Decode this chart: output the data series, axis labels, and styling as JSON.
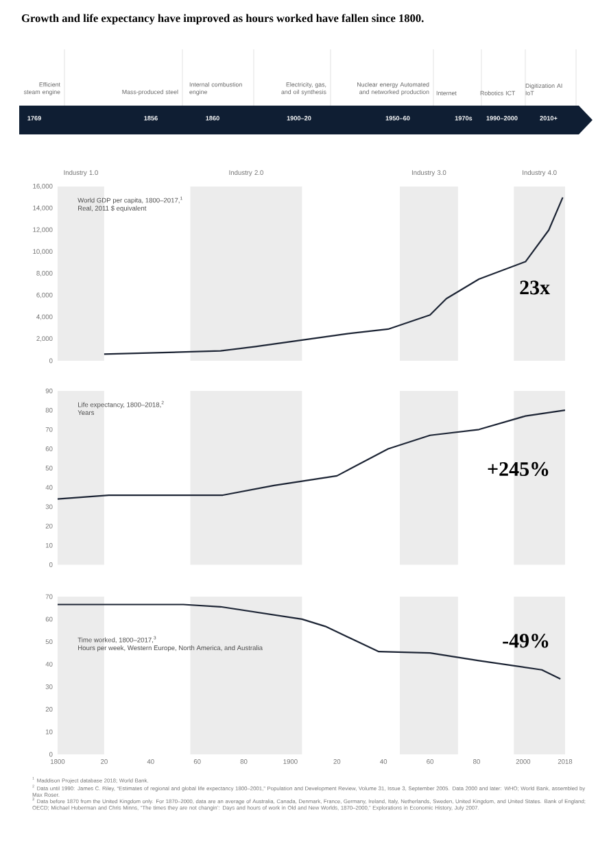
{
  "chart_data": [
    {
      "type": "other",
      "title": "Growth and life expectancy have improved as hours worked have fallen since 1800.",
      "categories": [
        "1769",
        "1856",
        "1860",
        "1900–20",
        "1950–60",
        "1970s",
        "1990–2000",
        "2010+"
      ],
      "annotations": [
        "Efficient steam engine",
        "Mass-produced steel",
        "Internal combustion engine",
        "Electricity, gas, and oil synthesis",
        "Nuclear energy Automated and networked production",
        "Internet",
        "Robotics ICT",
        "Digitization AI IoT"
      ]
    },
    {
      "type": "line",
      "title": "World GDP per capita, 1800–2017,$^{1}$",
      "subtitle": "Real, 2011 $ equivalent",
      "x": [
        1820,
        1870,
        1885,
        1905,
        1925,
        1942,
        1960,
        1967,
        1981,
        2001,
        2011,
        2017
      ],
      "series": [
        {
          "color": "#1c2434",
          "values": [
            600,
            900,
            1300,
            1900,
            2500,
            2900,
            4200,
            5700,
            7500,
            9100,
            12000,
            15000
          ]
        }
      ],
      "xlim": [
        1800,
        2018
      ],
      "ylim": [
        0,
        16000
      ],
      "yticks": [
        0,
        {
          "value": 2000,
          "label": "2,000"
        },
        {
          "value": 4000,
          "label": "4,000"
        },
        {
          "value": 6000,
          "label": "6,000"
        },
        {
          "value": 8000,
          "label": "8,000"
        },
        {
          "value": 10000,
          "label": "10,000"
        },
        {
          "value": 12000,
          "label": "12,000"
        },
        {
          "value": 14000,
          "label": "14,000"
        },
        {
          "value": 16000,
          "label": "16,000"
        }
      ],
      "tick_labels": "y",
      "bands": [
        {
          "axis": "x",
          "from": 1800,
          "to": 1820,
          "label": "Industry 1.0",
          "color": "#ececec"
        },
        {
          "axis": "x",
          "from": 1857,
          "to": 1905,
          "label": "Industry 2.0",
          "color": "#ececec"
        },
        {
          "axis": "x",
          "from": 1947,
          "to": 1972,
          "label": "Industry 3.0",
          "color": "#ececec"
        },
        {
          "axis": "x",
          "from": 1996,
          "to": 2018,
          "label": "Industry 4.0",
          "color": "#ececec"
        }
      ],
      "annotations": [
        "23x"
      ]
    },
    {
      "type": "line",
      "title": "Life expectancy, 1800–2018,$^{2}$",
      "subtitle": "Years",
      "x": [
        1800,
        1822,
        1871,
        1893,
        1920,
        1942,
        1960,
        1981,
        2001,
        2018
      ],
      "series": [
        {
          "color": "#1c2434",
          "values": [
            34,
            36,
            36,
            41,
            46,
            60,
            67,
            70,
            77,
            80
          ]
        }
      ],
      "xlim": [
        1800,
        2018
      ],
      "ylim": [
        0,
        90
      ],
      "yticks": [
        0,
        10,
        20,
        30,
        40,
        50,
        60,
        70,
        80,
        90
      ],
      "tick_labels": "y",
      "bands": [
        {
          "axis": "x",
          "from": 1800,
          "to": 1820,
          "color": "#ececec"
        },
        {
          "axis": "x",
          "from": 1857,
          "to": 1905,
          "color": "#ececec"
        },
        {
          "axis": "x",
          "from": 1947,
          "to": 1972,
          "color": "#ececec"
        },
        {
          "axis": "x",
          "from": 1996,
          "to": 2018,
          "color": "#ececec"
        }
      ],
      "annotations": [
        "+245%"
      ]
    },
    {
      "type": "line",
      "title": "Time worked, 1800–2017,$^{3}$",
      "subtitle": "Hours per week, Western Europe, North America, and Australia",
      "x": [
        1800,
        1854,
        1870,
        1905,
        1915,
        1938,
        1960,
        1981,
        2008,
        2016
      ],
      "series": [
        {
          "color": "#1c2434",
          "values": [
            66.5,
            66.5,
            65.5,
            60,
            56.8,
            45.6,
            45,
            41.6,
            37.5,
            33.5
          ]
        }
      ],
      "xlim": [
        1800,
        2018
      ],
      "ylim": [
        0,
        70
      ],
      "yticks": [
        0,
        10,
        20,
        30,
        40,
        50,
        60,
        70
      ],
      "xticks": [
        {
          "value": 1800,
          "label": "1800"
        },
        {
          "value": 1820,
          "label": "20"
        },
        {
          "value": 1840,
          "label": "40"
        },
        {
          "value": 1860,
          "label": "60"
        },
        {
          "value": 1880,
          "label": "80"
        },
        {
          "value": 1900,
          "label": "1900"
        },
        {
          "value": 1920,
          "label": "20"
        },
        {
          "value": 1940,
          "label": "40"
        },
        {
          "value": 1960,
          "label": "60"
        },
        {
          "value": 1980,
          "label": "80"
        },
        {
          "value": 2000,
          "label": "2000"
        },
        {
          "value": 2018,
          "label": "2018"
        }
      ],
      "bands": [
        {
          "axis": "x",
          "from": 1800,
          "to": 1820,
          "color": "#ececec"
        },
        {
          "axis": "x",
          "from": 1857,
          "to": 1905,
          "color": "#ececec"
        },
        {
          "axis": "x",
          "from": 1947,
          "to": 1972,
          "color": "#ececec"
        },
        {
          "axis": "x",
          "from": 1996,
          "to": 2018,
          "color": "#ececec"
        }
      ],
      "annotations": [
        "-49%",
        "$^{1}$ Maddison Project database 2018; World Bank.",
        "$^{2}$ Data until 1990: James C. Riley, “Estimates of regional and global life expectancy 1800–2001,” Population and Development Review, Volume 31, Issue 3, September 2005. Data 2000 and later: WHO; World Bank, assembled by Max Roser.",
        "$^{3}$ Data before 1870 from the United Kingdom only. For 1870–2000, data are an average of Australia, Canada, Denmark, France, Germany, Ireland, Italy, Netherlands, Sweden, United Kingdom, and United States. Bank of England; OECD; Michael Huberman and Chris Minns, “The times they are not changin’: Days and hours of work in Old and New Worlds, 1870–2000,” Explorations in Economic History, July 2007."
      ]
    }
  ]
}
